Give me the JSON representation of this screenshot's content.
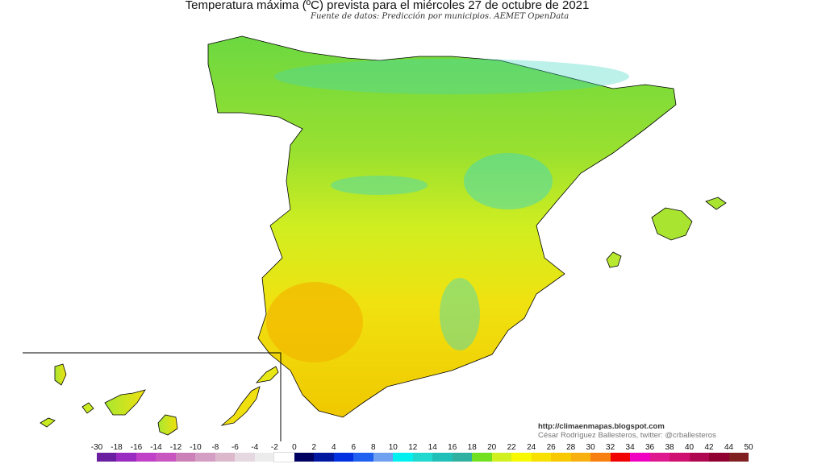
{
  "title": "Temperatura máxima (ºC) prevista para el miércoles 27 de octubre de 2021",
  "subtitle": "Fuente de datos: Predicción por municipios. AEMET OpenData",
  "credits": {
    "url": "http://climaenmapas.blogspot.com",
    "author": "César Rodríguez Ballesteros, twitter: @crballesteros"
  },
  "legend": {
    "unit": "ºC",
    "labels": [
      "-30",
      "-18",
      "-16",
      "-14",
      "-12",
      "-10",
      "-8",
      "-6",
      "-4",
      "-2",
      "0",
      "2",
      "4",
      "6",
      "8",
      "10",
      "12",
      "14",
      "16",
      "18",
      "20",
      "22",
      "24",
      "26",
      "28",
      "30",
      "32",
      "34",
      "36",
      "38",
      "40",
      "42",
      "44",
      "50"
    ],
    "colors": [
      "#6a1fa0",
      "#9a2bc0",
      "#c040c8",
      "#c855c0",
      "#cc80b8",
      "#d49ec4",
      "#dcb8cc",
      "#e6d8e0",
      "#ececec",
      "#ffffff",
      "#000060",
      "#0018a0",
      "#0030e0",
      "#2060f0",
      "#70a0f0",
      "#00f0f0",
      "#20d8d0",
      "#20c0b8",
      "#30b0a0",
      "#70e020",
      "#d0f020",
      "#f8f800",
      "#f8e000",
      "#f8c800",
      "#f8b010",
      "#f88010",
      "#f00000",
      "#f000c0",
      "#e01890",
      "#d01070",
      "#b00850",
      "#900030",
      "#802020"
    ]
  },
  "map": {
    "region_colors": {
      "north": "#7ad838",
      "center": "#c0ec28",
      "south": "#f4dc10",
      "southwest": "#f2b600",
      "mountains": "#40d8c0",
      "border": "#000000"
    }
  }
}
